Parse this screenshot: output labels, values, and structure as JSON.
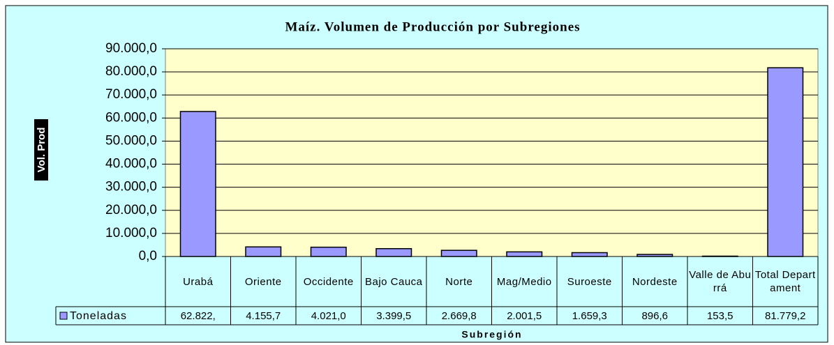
{
  "chart_data": {
    "type": "bar",
    "title": "Maíz. Volumen de Producción por Subregiones",
    "x_label": "Subregión",
    "y_label": "Vol. Prod",
    "categories": [
      "Urabá",
      "Oriente",
      "Occidente",
      "Bajo Cauca",
      "Norte",
      "Mag/Medio",
      "Suroeste",
      "Nordeste",
      "Valle de Aburrá",
      "Total Departament"
    ],
    "series": [
      {
        "name": "Toneladas",
        "color": "#9999ff",
        "values": [
          62822,
          4155.7,
          4021.0,
          3399.5,
          2669.8,
          2001.5,
          1659.3,
          896.6,
          153.5,
          81779.2
        ],
        "value_labels": [
          "62.822,",
          "4.155,7",
          "4.021,0",
          "3.399,5",
          "2.669,8",
          "2.001,5",
          "1.659,3",
          "896,6",
          "153,5",
          "81.779,2"
        ]
      }
    ],
    "ylim": [
      0,
      90000
    ],
    "yticks": [
      {
        "value": 0,
        "label": "0,0"
      },
      {
        "value": 10000,
        "label": "10.000,0"
      },
      {
        "value": 20000,
        "label": "20.000,0"
      },
      {
        "value": 30000,
        "label": "30.000,0"
      },
      {
        "value": 40000,
        "label": "40.000,0"
      },
      {
        "value": 50000,
        "label": "50.000,0"
      },
      {
        "value": 60000,
        "label": "60.000,0"
      },
      {
        "value": 70000,
        "label": "70.000,0"
      },
      {
        "value": 80000,
        "label": "80.000,0"
      },
      {
        "value": 90000,
        "label": "90.000,0"
      }
    ],
    "grid": true
  }
}
